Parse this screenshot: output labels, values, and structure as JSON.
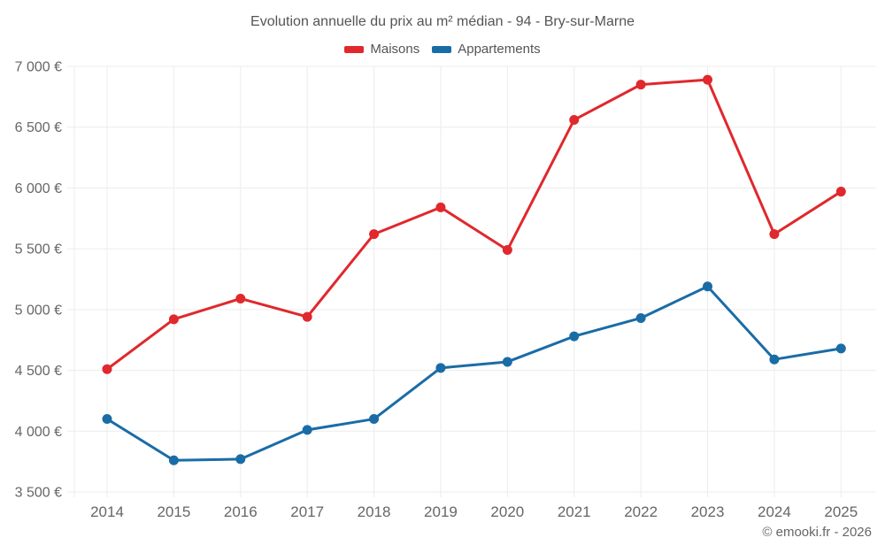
{
  "title": "Evolution annuelle du prix au m² médian - 94 - Bry-sur-Marne",
  "footer": {
    "copyright": "© emooki.fr - 2026"
  },
  "colors": {
    "maisons": "#e0282d",
    "appartements": "#1a6ca6",
    "grid": "#ececec",
    "axis_text": "#666666",
    "title_text": "#555555"
  },
  "chart_data": {
    "type": "line",
    "title": "Evolution annuelle du prix au m² médian - 94 - Bry-sur-Marne",
    "x": [
      2014,
      2015,
      2016,
      2017,
      2018,
      2019,
      2020,
      2021,
      2022,
      2023,
      2024,
      2025
    ],
    "series": [
      {
        "name": "Maisons",
        "color": "#e0282d",
        "values": [
          4510,
          4920,
          5090,
          4940,
          5620,
          5840,
          5490,
          6560,
          6850,
          6890,
          5620,
          5970
        ]
      },
      {
        "name": "Appartements",
        "color": "#1a6ca6",
        "values": [
          4100,
          3760,
          3770,
          4010,
          4100,
          4520,
          4570,
          4780,
          4930,
          5190,
          4590,
          4680
        ]
      }
    ],
    "xlabel": "",
    "ylabel": "",
    "ylim": [
      3500,
      7000
    ],
    "y_ticks": [
      3500,
      4000,
      4500,
      5000,
      5500,
      6000,
      6500,
      7000
    ],
    "y_tick_labels": [
      "3 500 €",
      "4 000 €",
      "4 500 €",
      "5 000 €",
      "5 500 €",
      "6 000 €",
      "6 500 €",
      "7 000 €"
    ],
    "grid": true,
    "legend_position": "top"
  }
}
